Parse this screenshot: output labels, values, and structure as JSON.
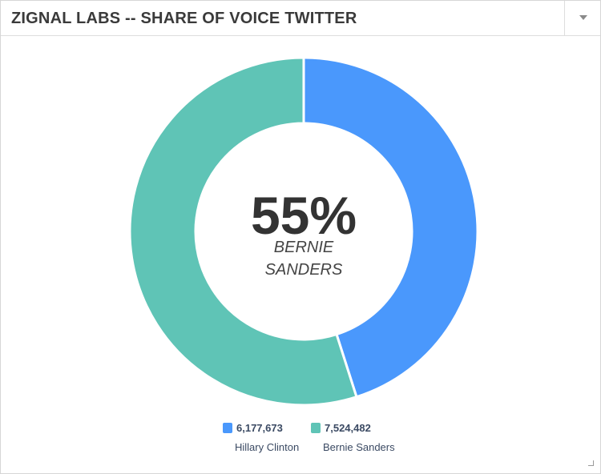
{
  "header": {
    "title": "ZIGNAL LABS -- SHARE OF VOICE TWITTER",
    "menu_icon": "chevron-down-icon"
  },
  "center": {
    "value": "55%",
    "name_line1": "BERNIE",
    "name_line2": "SANDERS"
  },
  "chart_data": {
    "type": "pie",
    "title": "ZIGNAL LABS -- SHARE OF VOICE TWITTER",
    "donut": true,
    "slices": [
      {
        "label": "Hillary Clinton",
        "value": 6177673,
        "display": "6,177,673",
        "color": "#4a98fc"
      },
      {
        "label": "Bernie Sanders",
        "value": 7524482,
        "display": "7,524,482",
        "color": "#5fc4b6"
      }
    ],
    "legend_position": "bottom"
  }
}
